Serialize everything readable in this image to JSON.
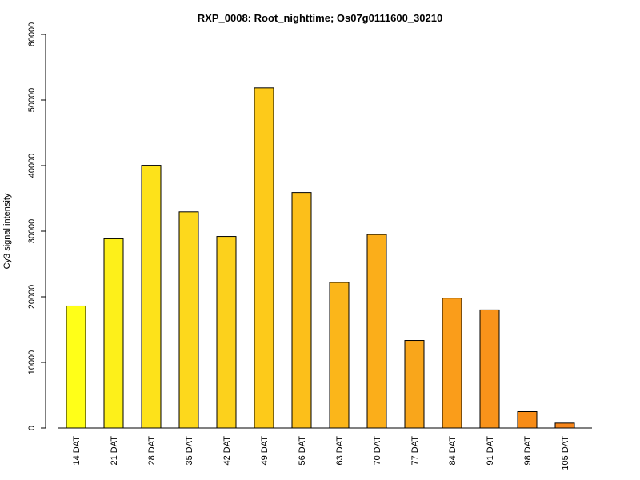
{
  "chart_data": {
    "type": "bar",
    "title": "RXP_0008: Root_nighttime; Os07g0111600_30210",
    "xlabel": "",
    "ylabel": "Cy3 signal intensity",
    "ylim": [
      0,
      60000
    ],
    "yticks": [
      0,
      10000,
      20000,
      30000,
      40000,
      50000,
      60000
    ],
    "categories": [
      "14 DAT",
      "21 DAT",
      "28 DAT",
      "35 DAT",
      "42 DAT",
      "49 DAT",
      "56 DAT",
      "63 DAT",
      "70 DAT",
      "77 DAT",
      "84 DAT",
      "91 DAT",
      "98 DAT",
      "105 DAT"
    ],
    "values": [
      18600,
      28850,
      40050,
      32950,
      29200,
      51850,
      35900,
      22200,
      29500,
      13350,
      19800,
      18000,
      2500,
      750
    ],
    "colors": [
      "#ffff18",
      "#fdf01a",
      "#fde21a",
      "#fdd81c",
      "#fcd11c",
      "#fdca1a",
      "#fcbf1a",
      "#fbb61a",
      "#fbae1a",
      "#f9a61b",
      "#fa9d1a",
      "#f9931a",
      "#f78c17",
      "#f7861b"
    ],
    "grid": false,
    "legend": "none"
  }
}
